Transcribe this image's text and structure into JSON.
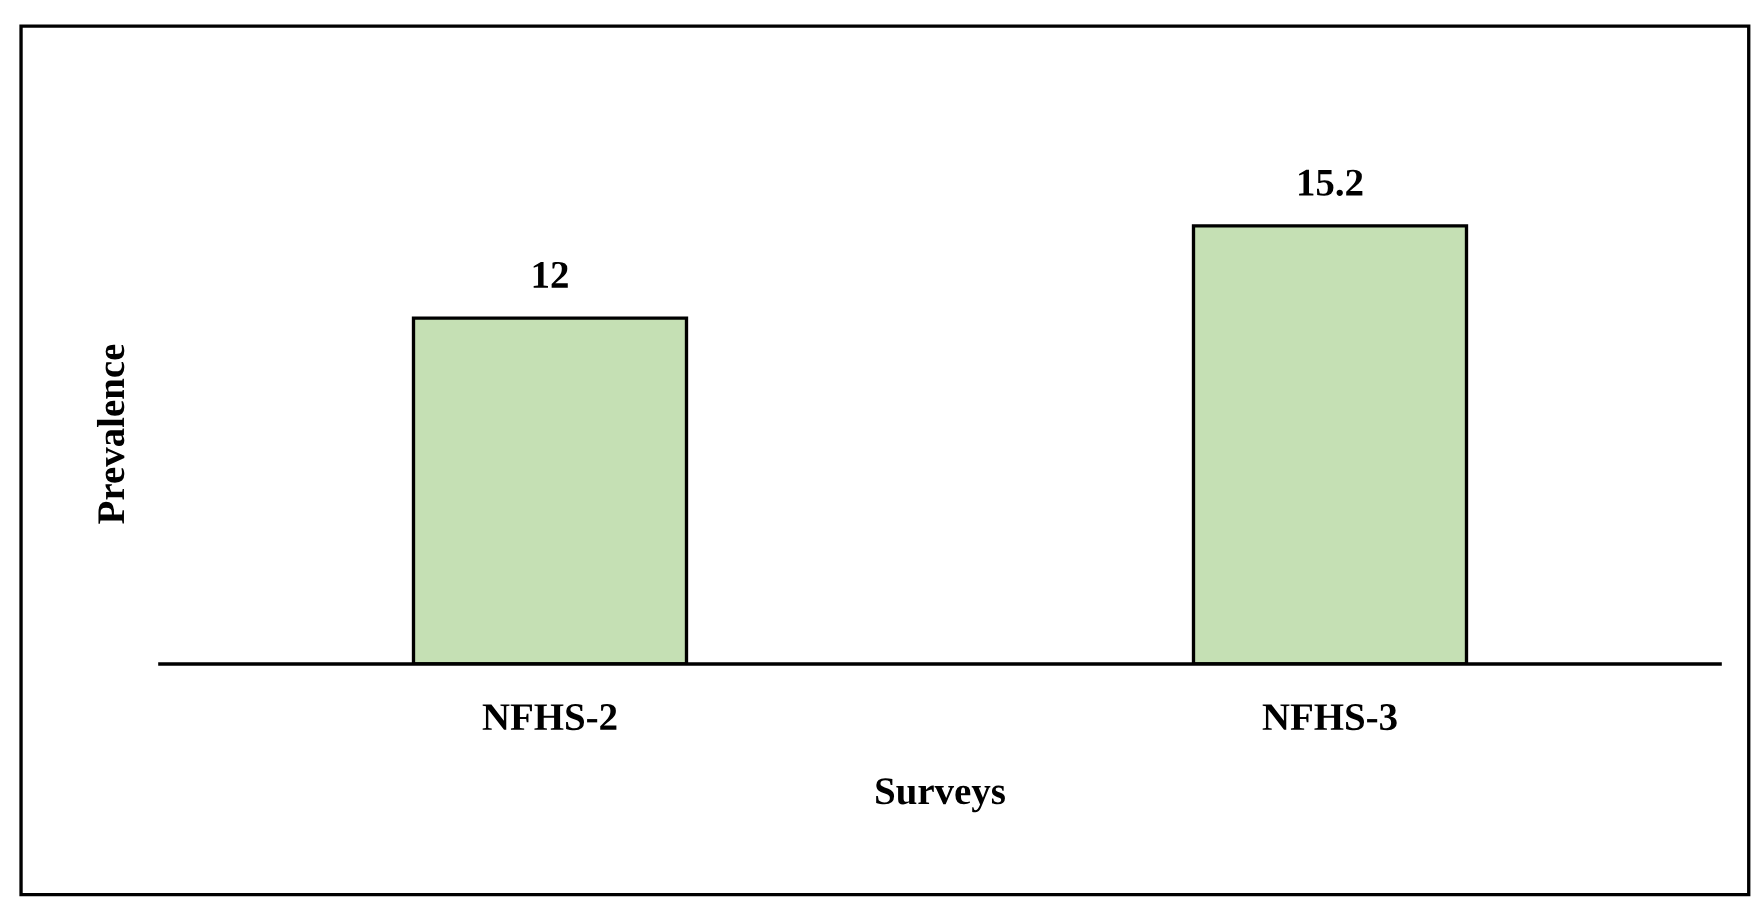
{
  "chart_data": {
    "type": "bar",
    "xlabel": "Surveys",
    "ylabel": "Prevalence",
    "categories": [
      "NFHS-2",
      "NFHS-3"
    ],
    "values": [
      12,
      15.2
    ],
    "color": "#c5e0b4",
    "tick_labels": "x",
    "data_labels": true,
    "grid": false,
    "legend": false
  }
}
